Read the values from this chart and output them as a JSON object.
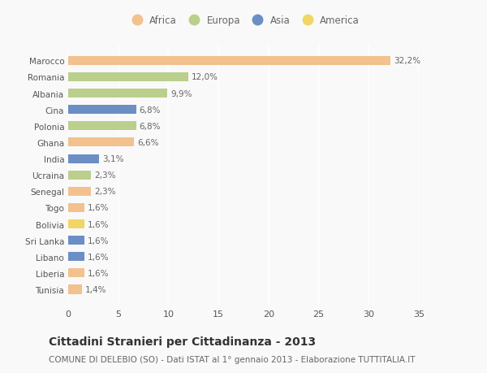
{
  "countries": [
    "Marocco",
    "Romania",
    "Albania",
    "Cina",
    "Polonia",
    "Ghana",
    "India",
    "Ucraina",
    "Senegal",
    "Togo",
    "Bolivia",
    "Sri Lanka",
    "Libano",
    "Liberia",
    "Tunisia"
  ],
  "values": [
    32.2,
    12.0,
    9.9,
    6.8,
    6.8,
    6.6,
    3.1,
    2.3,
    2.3,
    1.6,
    1.6,
    1.6,
    1.6,
    1.6,
    1.4
  ],
  "labels": [
    "32,2%",
    "12,0%",
    "9,9%",
    "6,8%",
    "6,8%",
    "6,6%",
    "3,1%",
    "2,3%",
    "2,3%",
    "1,6%",
    "1,6%",
    "1,6%",
    "1,6%",
    "1,6%",
    "1,4%"
  ],
  "continents": [
    "Africa",
    "Europa",
    "Europa",
    "Asia",
    "Europa",
    "Africa",
    "Asia",
    "Europa",
    "Africa",
    "Africa",
    "America",
    "Asia",
    "Asia",
    "Africa",
    "Africa"
  ],
  "colors": {
    "Africa": "#F2C18E",
    "Europa": "#BACF8C",
    "Asia": "#6B8FC5",
    "America": "#F2D663"
  },
  "legend_order": [
    "Africa",
    "Europa",
    "Asia",
    "America"
  ],
  "legend_colors": [
    "#F2C18E",
    "#BACF8C",
    "#6B8FC5",
    "#F2D663"
  ],
  "xlim": [
    0,
    35
  ],
  "xticks": [
    0,
    5,
    10,
    15,
    20,
    25,
    30,
    35
  ],
  "title": "Cittadini Stranieri per Cittadinanza - 2013",
  "subtitle": "COMUNE DI DELEBIO (SO) - Dati ISTAT al 1° gennaio 2013 - Elaborazione TUTTITALIA.IT",
  "bg_color": "#f9f9f9",
  "bar_height": 0.55,
  "title_fontsize": 10,
  "subtitle_fontsize": 7.5,
  "label_fontsize": 7.5,
  "ytick_fontsize": 7.5,
  "xtick_fontsize": 8,
  "legend_fontsize": 8.5
}
